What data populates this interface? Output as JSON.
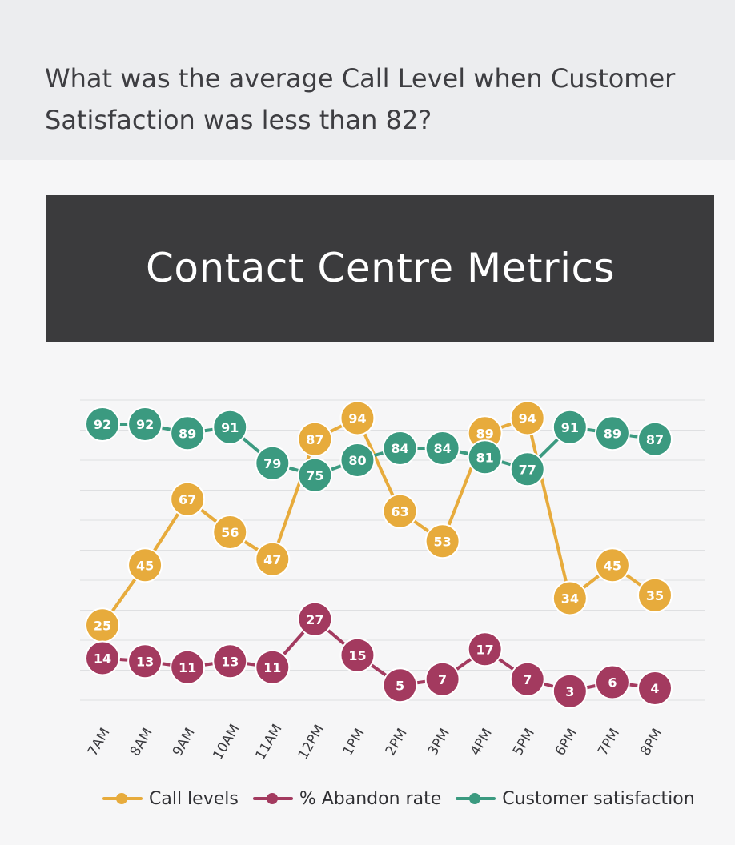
{
  "question": "What was the average Call Level when Customer Satisfaction was less than 82?",
  "chart_data": {
    "type": "line",
    "title": "Contact Centre Metrics",
    "categories": [
      "7AM",
      "8AM",
      "9AM",
      "10AM",
      "11AM",
      "12PM",
      "1PM",
      "2PM",
      "3PM",
      "4PM",
      "5PM",
      "6PM",
      "7PM",
      "8PM"
    ],
    "series": [
      {
        "name": "Call levels",
        "color": "#e7ab3c",
        "values": [
          25,
          45,
          67,
          56,
          47,
          87,
          94,
          63,
          53,
          89,
          94,
          34,
          45,
          35
        ]
      },
      {
        "name": "% Abandon rate",
        "color": "#a33a5f",
        "values": [
          14,
          13,
          11,
          13,
          11,
          27,
          15,
          5,
          7,
          17,
          7,
          3,
          6,
          4
        ]
      },
      {
        "name": "Customer satisfaction",
        "color": "#3b9a80",
        "values": [
          92,
          92,
          89,
          91,
          79,
          75,
          80,
          84,
          84,
          81,
          77,
          91,
          89,
          87
        ]
      }
    ],
    "ylim": [
      0,
      100
    ],
    "grid": true,
    "legend": "bottom",
    "data_labels": true
  }
}
